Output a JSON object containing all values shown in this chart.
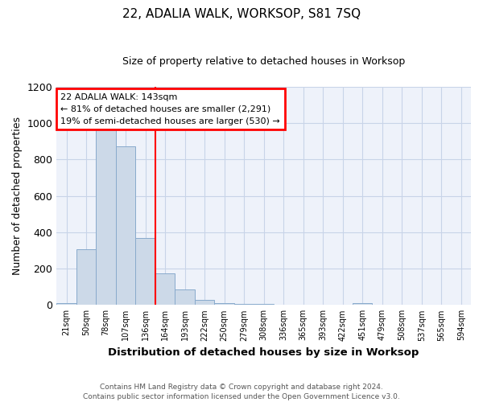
{
  "title": "22, ADALIA WALK, WORKSOP, S81 7SQ",
  "subtitle": "Size of property relative to detached houses in Worksop",
  "xlabel": "Distribution of detached houses by size in Worksop",
  "ylabel": "Number of detached properties",
  "footer_line1": "Contains HM Land Registry data © Crown copyright and database right 2024.",
  "footer_line2": "Contains public sector information licensed under the Open Government Licence v3.0.",
  "bins": [
    "21sqm",
    "50sqm",
    "78sqm",
    "107sqm",
    "136sqm",
    "164sqm",
    "193sqm",
    "222sqm",
    "250sqm",
    "279sqm",
    "308sqm",
    "336sqm",
    "365sqm",
    "393sqm",
    "422sqm",
    "451sqm",
    "479sqm",
    "508sqm",
    "537sqm",
    "565sqm",
    "594sqm"
  ],
  "values": [
    10,
    305,
    985,
    870,
    370,
    175,
    85,
    27,
    8,
    4,
    4,
    3,
    2,
    0,
    0,
    10,
    0,
    0,
    0,
    0,
    0
  ],
  "bar_color": "#ccd9e8",
  "bar_edge_color": "#88aacc",
  "vline_x_index": 4.5,
  "vline_color": "red",
  "annotation_title": "22 ADALIA WALK: 143sqm",
  "annotation_line2": "← 81% of detached houses are smaller (2,291)",
  "annotation_line3": "19% of semi-detached houses are larger (530) →",
  "annotation_box_color": "white",
  "annotation_box_edge_color": "red",
  "ylim": [
    0,
    1200
  ],
  "grid_color": "#c8d4e8",
  "background_color": "#ffffff",
  "plot_bg_color": "#eef2fa"
}
